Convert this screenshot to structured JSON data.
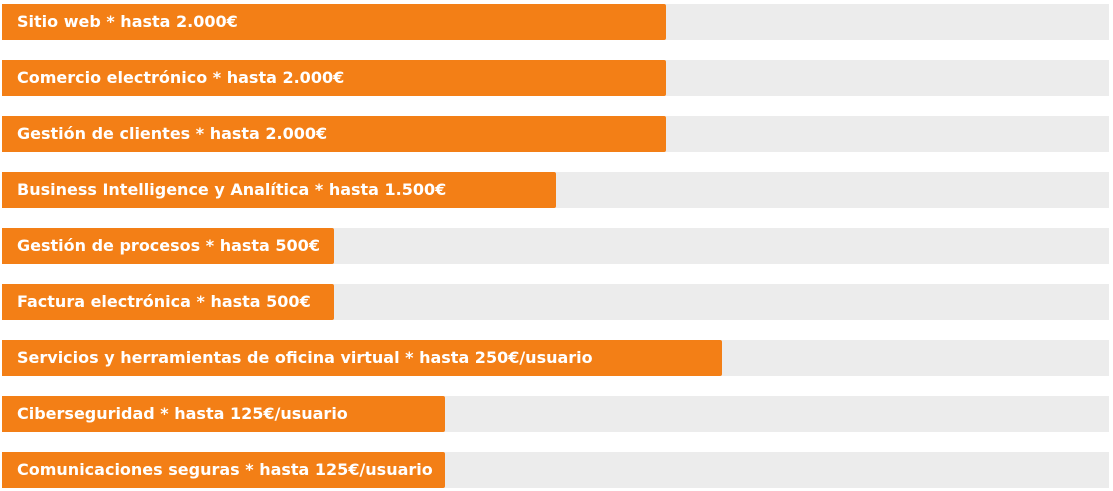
{
  "chart_data": {
    "type": "bar",
    "orientation": "horizontal",
    "bar_color": "#f37f16",
    "track_color": "#ececec",
    "xlim": [
      0,
      100
    ],
    "categories": [
      "Sitio web * hasta 2.000€",
      "Comercio electrónico * hasta 2.000€",
      "Gestión de clientes * hasta 2.000€",
      "Business Intelligence y Analítica * hasta 1.500€",
      "Gestión de procesos * hasta 500€",
      "Factura electrónica * hasta 500€",
      "Servicios y herramientas de oficina virtual * hasta 250€/usuario",
      "Ciberseguridad * hasta 125€/usuario",
      "Comunicaciones seguras * hasta 125€/usuario"
    ],
    "values": [
      60,
      60,
      60,
      50,
      30,
      30,
      65,
      40,
      40
    ]
  }
}
